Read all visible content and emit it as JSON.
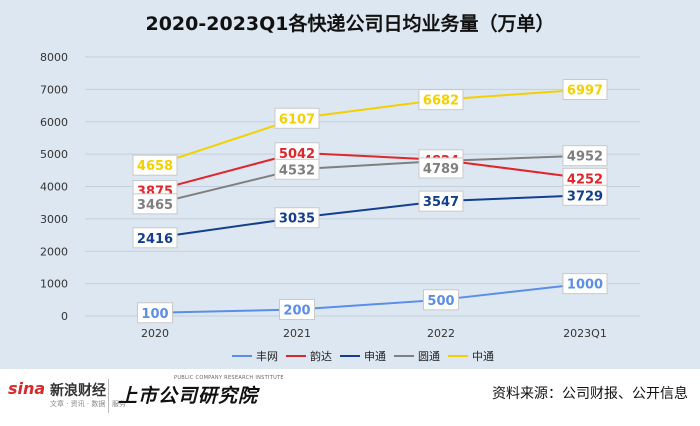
{
  "chart_data": {
    "type": "line",
    "title": "2020-2023Q1各快递公司日均业务量（万单）",
    "categories": [
      "2020",
      "2021",
      "2022",
      "2023Q1"
    ],
    "y_ticks": [
      "0",
      "1000",
      "2000",
      "3000",
      "4000",
      "5000",
      "6000",
      "7000",
      "8000"
    ],
    "ylim": [
      0,
      8000
    ],
    "grid": true,
    "legend_position": "bottom",
    "series": [
      {
        "name": "丰网",
        "color": "#5b8ee6",
        "values": [
          100,
          200,
          500,
          1000
        ],
        "labels": [
          "100",
          "200",
          "500",
          "1000"
        ]
      },
      {
        "name": "韵达",
        "color": "#e0262a",
        "values": [
          3875,
          5042,
          4824,
          4252
        ],
        "labels": [
          "3875",
          "5042",
          "4824",
          "4252"
        ]
      },
      {
        "name": "申通",
        "color": "#133f8c",
        "values": [
          2416,
          3035,
          3547,
          3729
        ],
        "labels": [
          "2416",
          "3035",
          "3547",
          "3729"
        ]
      },
      {
        "name": "圆通",
        "color": "#7f7f7f",
        "values": [
          3465,
          4532,
          4789,
          4952
        ],
        "labels": [
          "3465",
          "4532",
          "4789",
          "4952"
        ]
      },
      {
        "name": "中通",
        "color": "#f5d000",
        "values": [
          4658,
          6107,
          6682,
          6997
        ],
        "labels": [
          "4658",
          "6107",
          "6682",
          "6997"
        ]
      }
    ]
  },
  "footer": {
    "sina_logo": "sina",
    "sina_cn": "新浪财经",
    "sina_sub": "文章 · 资讯 · 数据 · 服务",
    "brand_cn": "上市公司研究院",
    "brand_en": "PUBLIC COMPANY RESEARCH INSTITUTE",
    "source": "资料来源：公司财报、公开信息"
  }
}
